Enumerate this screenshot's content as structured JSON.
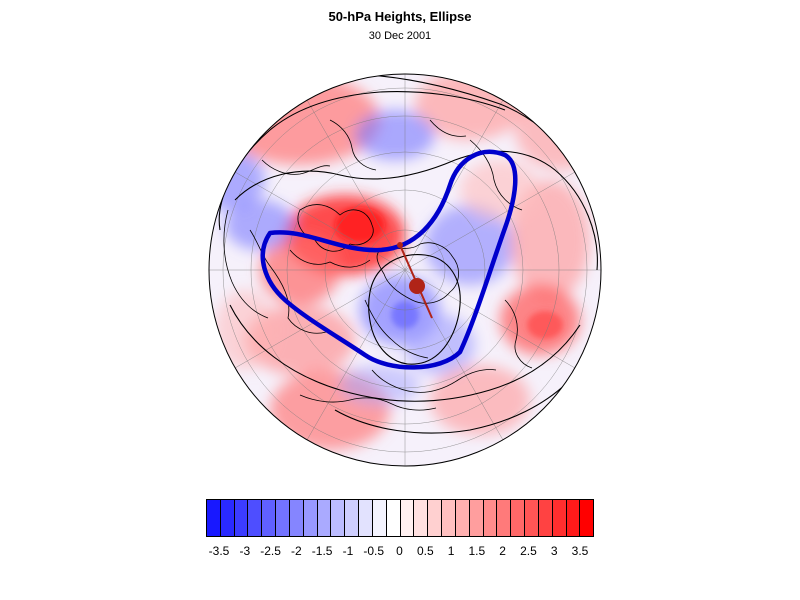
{
  "header": {
    "title": "50-hPa Heights, Ellipse",
    "date": "30 Dec 2001"
  },
  "map": {
    "projection": "north-polar orthographic (hemisphere disc)",
    "field": "height anomaly shading",
    "graticule": true,
    "coastlines": true,
    "ellipse_marker_color": "#b02418",
    "ellipse_contour_color": "#0000cc"
  },
  "colorbar": {
    "labels": [
      "-3.5",
      "-3",
      "-2.5",
      "-2",
      "-1.5",
      "-1",
      "-0.5",
      "0",
      "0.5",
      "1",
      "1.5",
      "2",
      "2.5",
      "3",
      "3.5"
    ],
    "colors": [
      "#1818ff",
      "#2a2aff",
      "#3c3cff",
      "#4e4eff",
      "#6060ff",
      "#7373ff",
      "#8585ff",
      "#9898ff",
      "#aaaaff",
      "#bcbcff",
      "#cecefe",
      "#e2e2fe",
      "#f4f4ff",
      "#ffffff",
      "#fff0f0",
      "#ffe0e0",
      "#ffd0d0",
      "#ffc0c0",
      "#ffb0b0",
      "#ff9e9e",
      "#ff8c8c",
      "#ff7a7a",
      "#ff6868",
      "#ff5555",
      "#ff4242",
      "#ff2e2e",
      "#ff1a1a",
      "#ff0000"
    ]
  }
}
